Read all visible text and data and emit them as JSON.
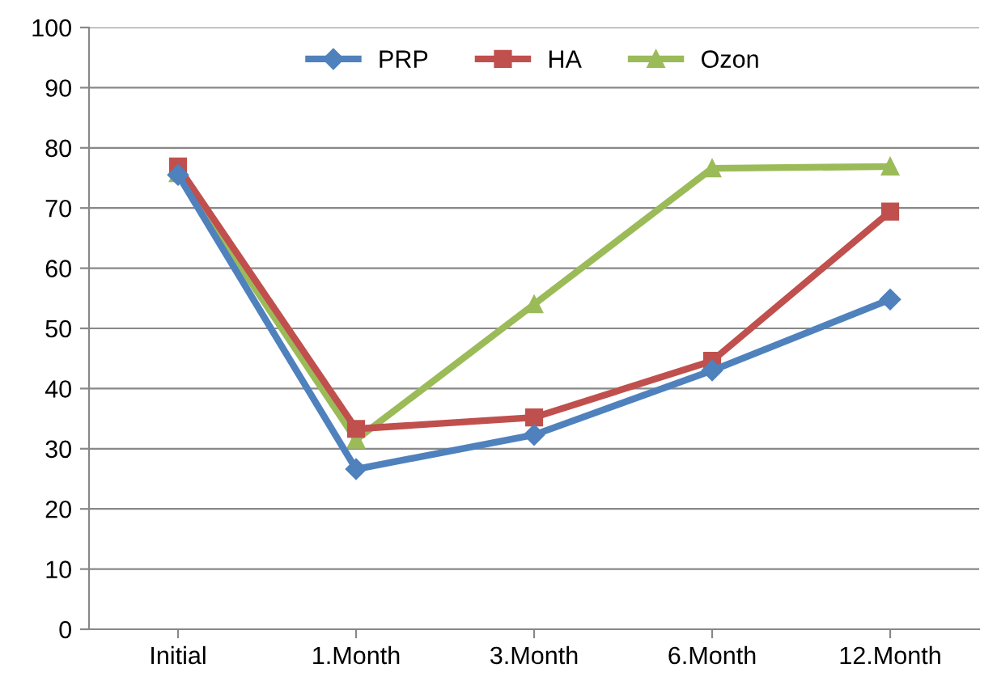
{
  "chart_data": {
    "type": "line",
    "categories": [
      "Initial",
      "1.Month",
      "3.Month",
      "6.Month",
      "12.Month"
    ],
    "series": [
      {
        "name": "PRP",
        "color": "#4f81bd",
        "marker": "diamond",
        "values": [
          75.5,
          26.6,
          32.3,
          43,
          54.8
        ]
      },
      {
        "name": "HA",
        "color": "#c0504d",
        "marker": "square",
        "values": [
          76.9,
          33.3,
          35.2,
          44.6,
          69.4
        ]
      },
      {
        "name": "Ozon",
        "color": "#9bbb59",
        "marker": "triangle",
        "values": [
          75.8,
          31.5,
          54,
          76.6,
          76.9
        ]
      }
    ],
    "ylim": [
      0,
      100
    ],
    "yticks": [
      0,
      10,
      20,
      30,
      40,
      50,
      60,
      70,
      80,
      90,
      100
    ],
    "grid": "y",
    "legend": "top",
    "line_style": "solid"
  }
}
